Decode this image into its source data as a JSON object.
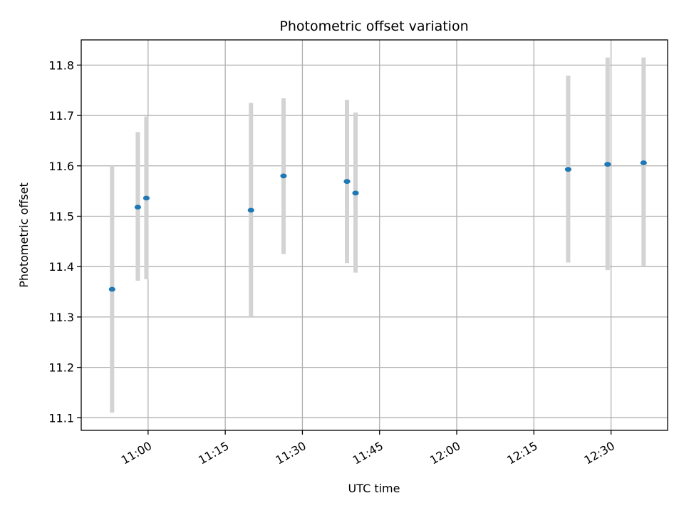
{
  "chart_data": {
    "type": "scatter",
    "title": "Photometric offset variation",
    "xlabel": "UTC time",
    "ylabel": "Photometric offset",
    "x_axis_kind": "time",
    "xlim": [
      "10:47:00",
      "12:41:00"
    ],
    "ylim": [
      11.075,
      11.85
    ],
    "x_ticks": [
      "11:00",
      "11:15",
      "11:30",
      "11:45",
      "12:00",
      "12:15",
      "12:30"
    ],
    "y_ticks": [
      "11.1",
      "11.2",
      "11.3",
      "11.4",
      "11.5",
      "11.6",
      "11.7",
      "11.8"
    ],
    "grid": true,
    "point_color": "#1f77b4",
    "errorbar_color": "#d3d3d3",
    "points": [
      {
        "x": "10:53:00",
        "y": 11.355,
        "ylow": 11.11,
        "yhigh": 11.6
      },
      {
        "x": "10:58:00",
        "y": 11.518,
        "ylow": 11.372,
        "yhigh": 11.667
      },
      {
        "x": "10:59:40",
        "y": 11.536,
        "ylow": 11.375,
        "yhigh": 11.698
      },
      {
        "x": "11:20:00",
        "y": 11.512,
        "ylow": 11.3,
        "yhigh": 11.725
      },
      {
        "x": "11:26:20",
        "y": 11.58,
        "ylow": 11.425,
        "yhigh": 11.734
      },
      {
        "x": "11:38:40",
        "y": 11.569,
        "ylow": 11.407,
        "yhigh": 11.731
      },
      {
        "x": "11:40:20",
        "y": 11.546,
        "ylow": 11.388,
        "yhigh": 11.706
      },
      {
        "x": "12:21:40",
        "y": 11.593,
        "ylow": 11.408,
        "yhigh": 11.779
      },
      {
        "x": "12:29:20",
        "y": 11.603,
        "ylow": 11.393,
        "yhigh": 11.815
      },
      {
        "x": "12:36:20",
        "y": 11.606,
        "ylow": 11.4,
        "yhigh": 11.815
      }
    ]
  }
}
